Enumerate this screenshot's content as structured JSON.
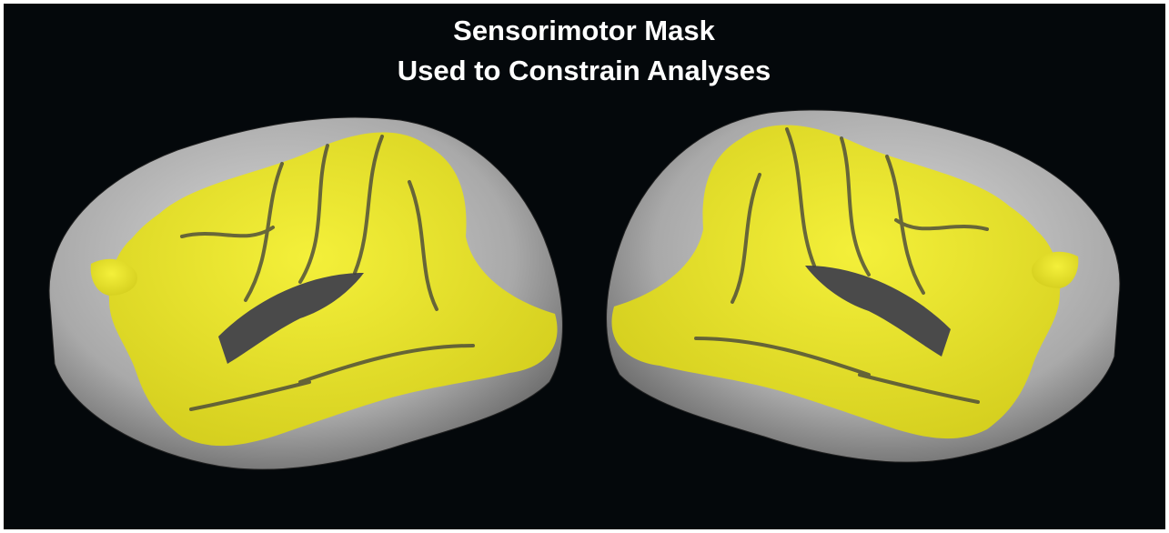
{
  "title": {
    "line1": "Sensorimotor Mask",
    "line2": "Used to Constrain Analyses"
  }
}
